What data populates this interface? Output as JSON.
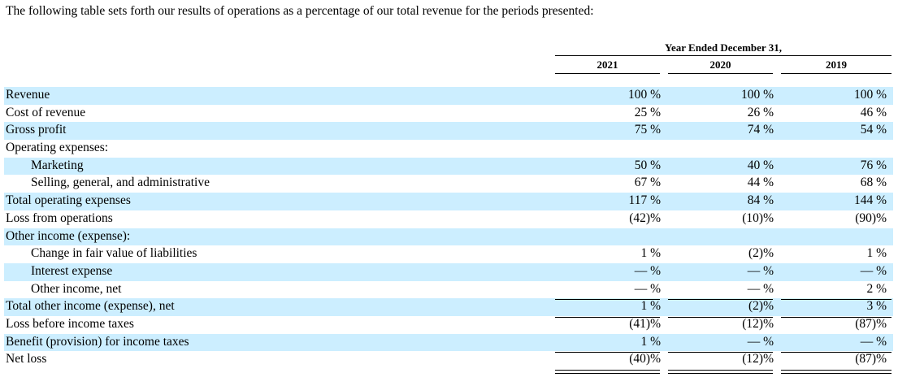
{
  "intro": "The following table sets forth our results of operations as a percentage of our total revenue for the periods presented:",
  "header": {
    "group": "Year Ended December 31,",
    "years": [
      "2021",
      "2020",
      "2019"
    ]
  },
  "rows": [
    {
      "label": "Revenue",
      "values": [
        "100 %",
        "100 %",
        "100 %"
      ]
    },
    {
      "label": "Cost of revenue",
      "values": [
        "25 %",
        "26 %",
        "46 %"
      ]
    },
    {
      "label": "Gross profit",
      "values": [
        "75 %",
        "74 %",
        "54 %"
      ]
    },
    {
      "label": "Operating expenses:",
      "values": [
        "",
        "",
        ""
      ]
    },
    {
      "label": "Marketing",
      "values": [
        "50 %",
        "40 %",
        "76 %"
      ]
    },
    {
      "label": "Selling, general, and administrative",
      "values": [
        "67 %",
        "44 %",
        "68 %"
      ]
    },
    {
      "label": "Total operating expenses",
      "values": [
        "117 %",
        "84 %",
        "144 %"
      ]
    },
    {
      "label": "Loss from operations",
      "values": [
        "(42)%",
        "(10)%",
        "(90)%"
      ]
    },
    {
      "label": "Other income (expense):",
      "values": [
        "",
        "",
        ""
      ]
    },
    {
      "label": "Change in fair value of liabilities",
      "values": [
        "1 %",
        "(2)%",
        "1 %"
      ]
    },
    {
      "label": "Interest expense",
      "values": [
        "— %",
        "— %",
        "— %"
      ]
    },
    {
      "label": "Other income, net",
      "values": [
        "— %",
        "— %",
        "2 %"
      ]
    },
    {
      "label": "Total other income (expense), net",
      "values": [
        "1 %",
        "(2)%",
        "3 %"
      ]
    },
    {
      "label": "Loss before income taxes",
      "values": [
        "(41)%",
        "(12)%",
        "(87)%"
      ]
    },
    {
      "label": "Benefit (provision) for income taxes",
      "values": [
        "1 %",
        "— %",
        "— %"
      ]
    },
    {
      "label": "Net loss",
      "values": [
        "(40)%",
        "(12)%",
        "(87)%"
      ]
    }
  ]
}
